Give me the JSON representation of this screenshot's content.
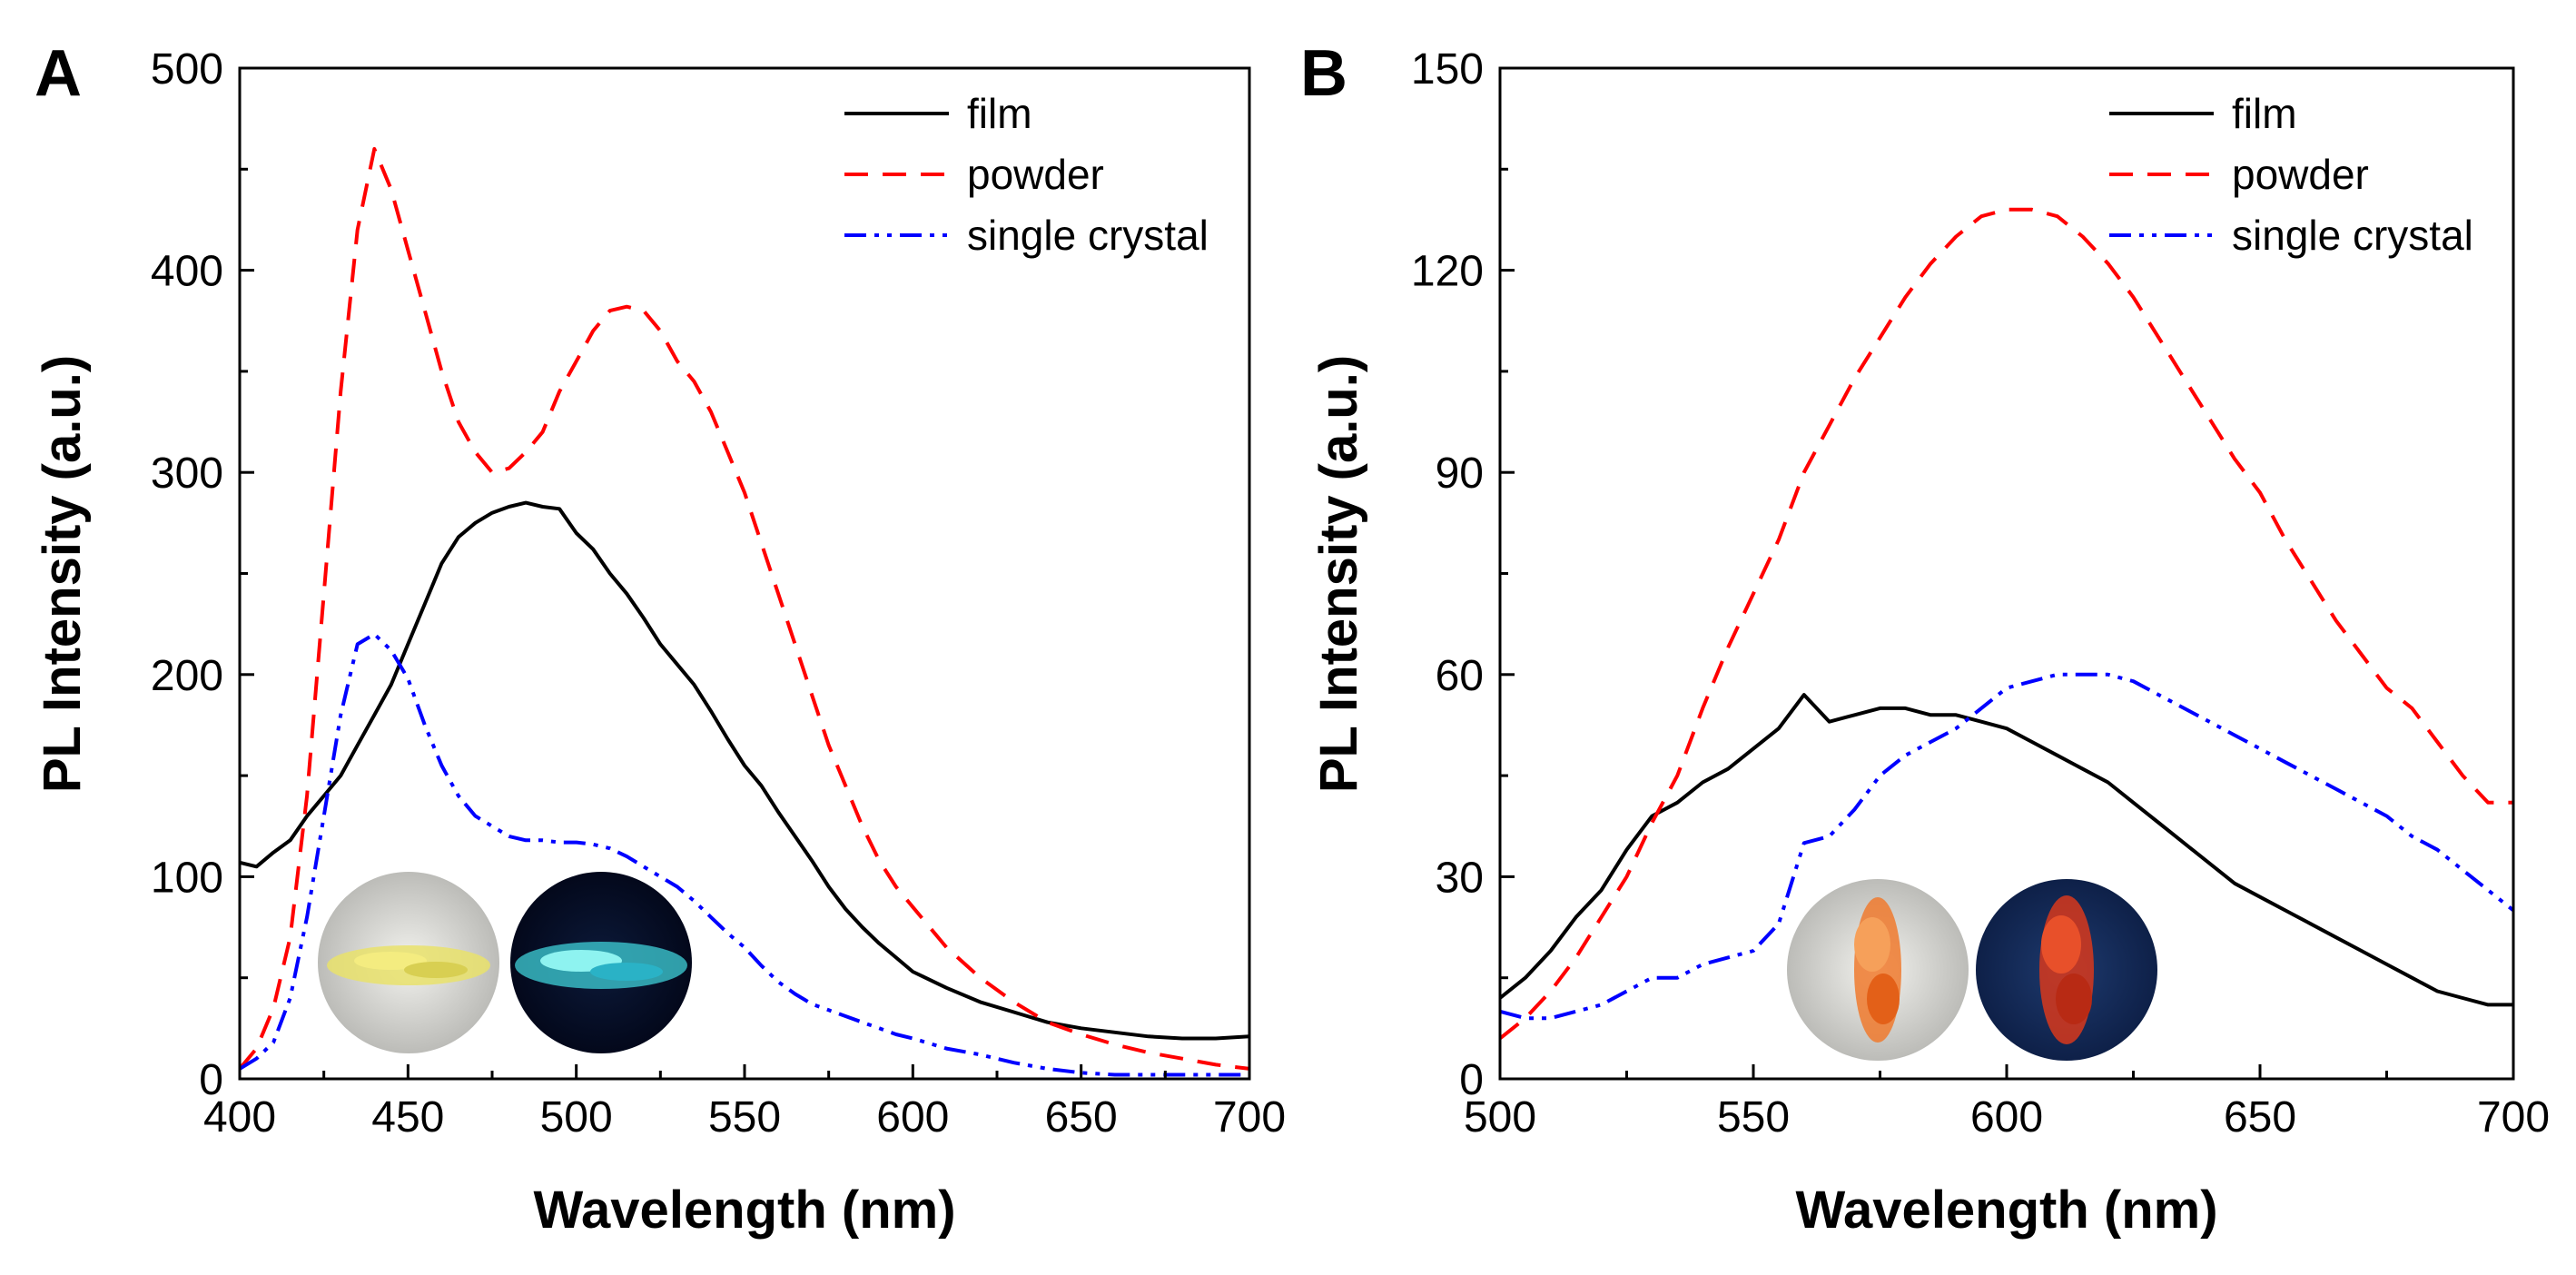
{
  "chart_data": [
    {
      "panel": "A",
      "type": "line",
      "xlabel": "Wavelength (nm)",
      "ylabel": "PL Intensity (a.u.)",
      "xlim": [
        400,
        700
      ],
      "ylim": [
        0,
        500
      ],
      "xticks": [
        400,
        450,
        500,
        550,
        600,
        650,
        700
      ],
      "yticks": [
        0,
        100,
        200,
        300,
        400,
        500
      ],
      "legend_position": "top-right",
      "series": [
        {
          "name": "film",
          "color": "#000000",
          "style": "solid",
          "x": [
            400,
            405,
            410,
            415,
            420,
            425,
            430,
            435,
            440,
            445,
            450,
            455,
            460,
            465,
            470,
            475,
            480,
            485,
            490,
            495,
            500,
            505,
            510,
            515,
            520,
            525,
            530,
            535,
            540,
            545,
            550,
            555,
            560,
            565,
            570,
            575,
            580,
            585,
            590,
            595,
            600,
            610,
            620,
            630,
            640,
            650,
            660,
            670,
            680,
            690,
            700
          ],
          "y": [
            107,
            105,
            112,
            118,
            130,
            140,
            150,
            165,
            180,
            195,
            215,
            235,
            255,
            268,
            275,
            280,
            283,
            285,
            283,
            282,
            270,
            262,
            250,
            240,
            228,
            215,
            205,
            195,
            182,
            168,
            155,
            145,
            132,
            120,
            108,
            95,
            84,
            75,
            67,
            60,
            53,
            45,
            38,
            33,
            28,
            25,
            23,
            21,
            20,
            20,
            21
          ]
        },
        {
          "name": "powder",
          "color": "#ff0000",
          "style": "dashed",
          "x": [
            400,
            405,
            410,
            415,
            420,
            425,
            430,
            435,
            440,
            445,
            450,
            455,
            460,
            465,
            470,
            475,
            480,
            485,
            490,
            495,
            500,
            505,
            510,
            515,
            520,
            525,
            530,
            535,
            540,
            545,
            550,
            555,
            560,
            565,
            570,
            575,
            580,
            585,
            590,
            595,
            600,
            610,
            620,
            630,
            640,
            650,
            660,
            670,
            680,
            690,
            700
          ],
          "y": [
            5,
            15,
            35,
            70,
            140,
            240,
            340,
            420,
            460,
            440,
            410,
            380,
            350,
            325,
            310,
            300,
            302,
            310,
            320,
            340,
            355,
            370,
            380,
            382,
            380,
            370,
            355,
            345,
            330,
            310,
            290,
            265,
            240,
            215,
            190,
            165,
            145,
            125,
            108,
            95,
            85,
            65,
            50,
            38,
            28,
            22,
            17,
            13,
            10,
            7,
            5
          ]
        },
        {
          "name": "single crystal",
          "color": "#0000ff",
          "style": "dash-dot-dot",
          "x": [
            400,
            405,
            410,
            415,
            420,
            425,
            430,
            435,
            440,
            445,
            450,
            455,
            460,
            465,
            470,
            475,
            480,
            485,
            490,
            495,
            500,
            505,
            510,
            515,
            520,
            525,
            530,
            535,
            540,
            545,
            550,
            555,
            560,
            565,
            570,
            575,
            580,
            585,
            590,
            595,
            600,
            610,
            620,
            630,
            640,
            650,
            660,
            670,
            680,
            690,
            700
          ],
          "y": [
            5,
            10,
            18,
            40,
            80,
            130,
            180,
            215,
            220,
            212,
            198,
            175,
            155,
            140,
            130,
            125,
            120,
            118,
            118,
            117,
            117,
            116,
            114,
            110,
            105,
            100,
            95,
            88,
            80,
            72,
            65,
            56,
            48,
            42,
            37,
            34,
            31,
            28,
            25,
            22,
            20,
            15,
            12,
            8,
            5,
            3,
            2,
            2,
            2,
            2,
            2
          ]
        }
      ]
    },
    {
      "panel": "B",
      "type": "line",
      "xlabel": "Wavelength (nm)",
      "ylabel": "PL Intensity (a.u.)",
      "xlim": [
        500,
        700
      ],
      "ylim": [
        0,
        150
      ],
      "xticks": [
        500,
        550,
        600,
        650,
        700
      ],
      "yticks": [
        0,
        30,
        60,
        90,
        120,
        150
      ],
      "legend_position": "top-right",
      "series": [
        {
          "name": "film",
          "color": "#000000",
          "style": "solid",
          "x": [
            500,
            505,
            510,
            515,
            520,
            525,
            530,
            535,
            540,
            545,
            550,
            555,
            560,
            565,
            570,
            575,
            580,
            585,
            590,
            595,
            600,
            605,
            610,
            615,
            620,
            625,
            630,
            635,
            640,
            645,
            650,
            655,
            660,
            665,
            670,
            675,
            680,
            685,
            690,
            695,
            700
          ],
          "y": [
            12,
            15,
            19,
            24,
            28,
            34,
            39,
            41,
            44,
            46,
            49,
            52,
            57,
            53,
            54,
            55,
            55,
            54,
            54,
            53,
            52,
            50,
            48,
            46,
            44,
            41,
            38,
            35,
            32,
            29,
            27,
            25,
            23,
            21,
            19,
            17,
            15,
            13,
            12,
            11,
            11
          ]
        },
        {
          "name": "powder",
          "color": "#ff0000",
          "style": "dashed",
          "x": [
            500,
            505,
            510,
            515,
            520,
            525,
            530,
            535,
            540,
            545,
            550,
            555,
            560,
            565,
            570,
            575,
            580,
            585,
            590,
            595,
            600,
            605,
            610,
            615,
            620,
            625,
            630,
            635,
            640,
            645,
            650,
            655,
            660,
            665,
            670,
            675,
            680,
            685,
            690,
            695,
            700
          ],
          "y": [
            6,
            9,
            13,
            18,
            24,
            30,
            38,
            45,
            55,
            64,
            72,
            80,
            90,
            97,
            104,
            110,
            116,
            121,
            125,
            128,
            129,
            129,
            128,
            125,
            121,
            116,
            110,
            104,
            98,
            92,
            87,
            80,
            74,
            68,
            63,
            58,
            55,
            50,
            45,
            41,
            41
          ]
        },
        {
          "name": "single crystal",
          "color": "#0000ff",
          "style": "dash-dot-dot",
          "x": [
            500,
            505,
            510,
            515,
            520,
            525,
            530,
            535,
            540,
            545,
            550,
            555,
            560,
            565,
            570,
            575,
            580,
            585,
            590,
            595,
            600,
            605,
            610,
            615,
            620,
            625,
            630,
            635,
            640,
            645,
            650,
            655,
            660,
            665,
            670,
            675,
            680,
            685,
            690,
            695,
            700
          ],
          "y": [
            10,
            9,
            9,
            10,
            11,
            13,
            15,
            15,
            17,
            18,
            19,
            23,
            35,
            36,
            40,
            45,
            48,
            50,
            52,
            55,
            58,
            59,
            60,
            60,
            60,
            59,
            57,
            55,
            53,
            51,
            49,
            47,
            45,
            43,
            41,
            39,
            36,
            34,
            31,
            28,
            25
          ]
        }
      ]
    }
  ]
}
